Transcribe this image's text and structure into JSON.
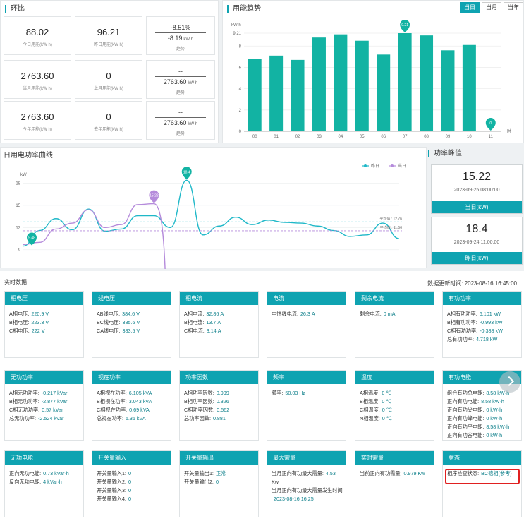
{
  "ring": {
    "title": "环比",
    "cards": [
      {
        "value": "88.02",
        "label": "今日用能(kW h)"
      },
      {
        "value": "96.21",
        "label": "昨日用能(kW h)"
      },
      {
        "value": "2763.60",
        "label": "当月用能(kW h)"
      },
      {
        "value": "0",
        "label": "上月用能(kW h)"
      },
      {
        "value": "2763.60",
        "label": "今年用能(kW h)"
      },
      {
        "value": "0",
        "label": "去年用能(kW h)"
      }
    ],
    "trends": [
      {
        "line1": "-8.51%",
        "line2": "-8.19",
        "unit": "kW h",
        "label": "趋势"
      },
      {
        "line1": "--",
        "line2": "2763.60",
        "unit": "kW h",
        "label": "趋势"
      },
      {
        "line1": "--",
        "line2": "2763.60",
        "unit": "kW h",
        "label": "趋势"
      }
    ]
  },
  "trend": {
    "title": "用能趋势",
    "tabs": [
      "当日",
      "当月",
      "当年"
    ],
    "active_tab": "当日"
  },
  "power": {
    "title": "日用电功率曲线",
    "legend": [
      "昨日",
      "当日"
    ],
    "avg_labels": [
      "平均值 : 12.76",
      "平均值 : 11.56"
    ]
  },
  "peak": {
    "title": "功率峰值",
    "items": [
      {
        "value": "15.22",
        "date": "2023-09-25 08:00:00",
        "label": "当日(kW)"
      },
      {
        "value": "18.4",
        "date": "2023-09-24 11:00:00",
        "label": "昨日(kW)"
      }
    ]
  },
  "realtime": {
    "title": "实时数据",
    "update_time": "数据更新时间: 2023-08-16 16:45:00",
    "cards": [
      {
        "title": "相电压",
        "rows": [
          [
            "A相电压:",
            "220.9 V"
          ],
          [
            "B相电压:",
            "223.3 V"
          ],
          [
            "C相电压:",
            "222 V"
          ]
        ]
      },
      {
        "title": "线电压",
        "rows": [
          [
            "AB线电压:",
            "384.6 V"
          ],
          [
            "BC线电压:",
            "385.6 V"
          ],
          [
            "CA线电压:",
            "383.5 V"
          ]
        ]
      },
      {
        "title": "相电流",
        "rows": [
          [
            "A相电流:",
            "32.86 A"
          ],
          [
            "B相电流:",
            "13.7 A"
          ],
          [
            "C相电流:",
            "3.14 A"
          ]
        ]
      },
      {
        "title": "电流",
        "rows": [
          [
            "中性线电流:",
            "26.3 A"
          ]
        ]
      },
      {
        "title": "剩余电流",
        "rows": [
          [
            "剩余电流:",
            "0 mA"
          ]
        ]
      },
      {
        "title": "有功功率",
        "rows": [
          [
            "A相有功功率:",
            "6.101 kW"
          ],
          [
            "B相有功功率:",
            "-0.993 kW"
          ],
          [
            "C相有功功率:",
            "-0.388 kW"
          ],
          [
            "总有功功率:",
            "4.718 kW"
          ]
        ]
      },
      {
        "title": "无功功率",
        "rows": [
          [
            "A相无功功率:",
            "-0.217 kVar"
          ],
          [
            "B相无功功率:",
            "-2.877 kVar"
          ],
          [
            "C相无功功率:",
            "0.57 kVar"
          ],
          [
            "总无功功率:",
            "-2.524 kVar"
          ]
        ]
      },
      {
        "title": "视在功率",
        "rows": [
          [
            "A相视在功率:",
            "6.105 kVA"
          ],
          [
            "B相视在功率:",
            "3.043 kVA"
          ],
          [
            "C相视在功率:",
            "0.69 kVA"
          ],
          [
            "总视在功率:",
            "5.35 kVA"
          ]
        ]
      },
      {
        "title": "功率因数",
        "rows": [
          [
            "A相功率因数:",
            "0.999"
          ],
          [
            "B相功率因数:",
            "0.326"
          ],
          [
            "C相功率因数:",
            "0.562"
          ],
          [
            "总功率因数:",
            "0.881"
          ]
        ]
      },
      {
        "title": "频率",
        "rows": [
          [
            "频率:",
            "50.03 Hz"
          ]
        ]
      },
      {
        "title": "温度",
        "rows": [
          [
            "A相温度:",
            "0 ℃"
          ],
          [
            "B相温度:",
            "0 ℃"
          ],
          [
            "C相温度:",
            "0 ℃"
          ],
          [
            "N相温度:",
            "0 ℃"
          ]
        ]
      },
      {
        "title": "有功电能",
        "rows": [
          [
            "组合有功总电能:",
            "8.58 kW·h"
          ],
          [
            "正向有功电能:",
            "8.58 kW·h"
          ],
          [
            "正向有功尖电能:",
            "0 kW·h"
          ],
          [
            "正向有功峰电能:",
            "0 kW·h"
          ],
          [
            "正向有功平电能:",
            "8.58 kW·h"
          ],
          [
            "正向有功谷电能:",
            "0 kW·h"
          ]
        ]
      },
      {
        "title": "无功电能",
        "rows": [
          [
            "正向无功电能:",
            "0.73 kVar·h"
          ],
          [
            "反向无功电能:",
            "4 kVar·h"
          ]
        ]
      },
      {
        "title": "开关量输入",
        "rows": [
          [
            "开关量输入1:",
            "0"
          ],
          [
            "开关量输入2:",
            "0"
          ],
          [
            "开关量输入3:",
            "0"
          ],
          [
            "开关量输入4:",
            "0"
          ]
        ]
      },
      {
        "title": "开关量输出",
        "rows": [
          [
            "开关量输出1:",
            "正常"
          ],
          [
            "开关量输出2:",
            "0"
          ]
        ]
      },
      {
        "title": "最大需量",
        "rows": [
          [
            "当月正向有功最大需量:",
            "4.53"
          ],
          [
            "Kw",
            ""
          ],
          [
            "当月正向有功最大需量发生时间",
            ""
          ],
          [
            "",
            "2023-08-16 16:25"
          ]
        ]
      },
      {
        "title": "实时需量",
        "rows": [
          [
            "当前正向有功需量:",
            "0.979 Kw"
          ]
        ]
      },
      {
        "title": "状态",
        "rows": [
          [
            "相序检查状态:",
            "BC错相(参考)"
          ]
        ]
      }
    ]
  },
  "chart_data": [
    {
      "type": "bar",
      "title": "用能趋势",
      "ylabel": "kW h",
      "categories": [
        "00",
        "01",
        "02",
        "03",
        "04",
        "05",
        "06",
        "07",
        "08",
        "09",
        "10",
        "11"
      ],
      "xunit": "时",
      "values": [
        6.8,
        7.1,
        6.7,
        8.8,
        9.1,
        8.5,
        7.2,
        9.21,
        9.0,
        7.6,
        8.1,
        0
      ],
      "markers": [
        "9.21",
        "0"
      ],
      "ylim": [
        0,
        9.21
      ],
      "yticks": [
        "0",
        "2",
        "4",
        "6",
        "8",
        "9.21"
      ]
    },
    {
      "type": "line",
      "title": "日用电功率曲线",
      "ylabel": "kW",
      "yticks": [
        "9",
        "12",
        "15",
        "18"
      ],
      "ylim": [
        8.5,
        19
      ],
      "series": [
        {
          "name": "昨日",
          "color": "#1fb8c8",
          "values": [
            9.5,
            11.6,
            13.2,
            11.7,
            14.5,
            11.5,
            11.8,
            13.6,
            13.6,
            12.0,
            18.4,
            11.0,
            12.2,
            13.4,
            12.4,
            13.0,
            12.7,
            12.6,
            12.2,
            11.6,
            10.8,
            11.0,
            12.6,
            10.5
          ]
        },
        {
          "name": "当日",
          "color": "#b58bdb",
          "values": [
            9.7,
            10.0,
            11.8,
            12.6,
            14.4,
            12.0,
            12.4,
            15.1,
            15.22,
            8.0
          ]
        }
      ],
      "markers": [
        "9.48",
        "15.22",
        "18.4"
      ],
      "averages": [
        12.76,
        11.56
      ]
    }
  ]
}
